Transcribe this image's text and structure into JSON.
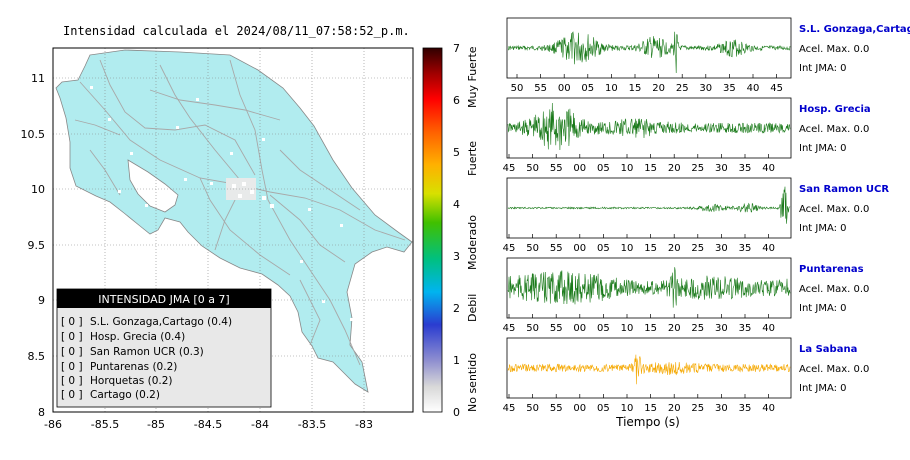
{
  "chart_data": [
    {
      "type": "heatmap",
      "title": "Intensidad calculada el 2024/08/11_07:58:52_p.m.",
      "xlabel": "",
      "ylabel": "",
      "xlim": [
        -86,
        -82.5
      ],
      "ylim": [
        8,
        11.3
      ],
      "x_ticks": [
        "-86",
        "-85.5",
        "-85",
        "-84.5",
        "-84",
        "-83.5",
        "-83"
      ],
      "y_ticks": [
        "8",
        "8.5",
        "9",
        "9.5",
        "10",
        "10.5",
        "11"
      ],
      "grid": true,
      "colorbar": {
        "min": 0,
        "max": 7,
        "ticks": [
          "0",
          "1",
          "2",
          "3",
          "4",
          "5",
          "6",
          "7"
        ],
        "labels": [
          "No sentido",
          "Debil",
          "Moderado",
          "Fuerte",
          "Muy Fuerte"
        ]
      },
      "legend": {
        "title": "INTENSIDAD JMA [0 a 7]",
        "placement": "bottom-left",
        "entries": [
          {
            "level": "[ 0 ]",
            "text": "S.L. Gonzaga,Cartago (0.4)"
          },
          {
            "level": "[ 0 ]",
            "text": "Hosp. Grecia (0.4)"
          },
          {
            "level": "[ 0 ]",
            "text": "San Ramon UCR (0.3)"
          },
          {
            "level": "[ 0 ]",
            "text": "Puntarenas (0.2)"
          },
          {
            "level": "[ 0 ]",
            "text": "Horquetas (0.2)"
          },
          {
            "level": "[ 0 ]",
            "text": "Cartago (0.2)"
          }
        ]
      }
    },
    {
      "type": "line",
      "title": "",
      "xlabel": "Tiempo (s)",
      "series": [
        {
          "name": "S.L. Gonzaga,Cartago",
          "acel": "Acel. Max. 0.0",
          "int": "Int JMA: 0",
          "color": "#1a7a1a",
          "x_ticks": [
            "50",
            "55",
            "00",
            "05",
            "10",
            "15",
            "20",
            "25",
            "30",
            "35",
            "40",
            "45"
          ]
        },
        {
          "name": "Hosp. Grecia",
          "acel": "Acel. Max. 0.0",
          "int": "Int JMA: 0",
          "color": "#1a7a1a",
          "x_ticks": [
            "45",
            "50",
            "55",
            "00",
            "05",
            "10",
            "15",
            "20",
            "25",
            "30",
            "35",
            "40"
          ]
        },
        {
          "name": "San Ramon UCR",
          "acel": "Acel. Max. 0.0",
          "int": "Int JMA: 0",
          "color": "#1a7a1a",
          "x_ticks": [
            "45",
            "50",
            "55",
            "00",
            "05",
            "10",
            "15",
            "20",
            "25",
            "30",
            "35",
            "40"
          ]
        },
        {
          "name": "Puntarenas",
          "acel": "Acel. Max. 0.0",
          "int": "Int JMA: 0",
          "color": "#1a7a1a",
          "x_ticks": [
            "45",
            "50",
            "55",
            "00",
            "05",
            "10",
            "15",
            "20",
            "25",
            "30",
            "35",
            "40"
          ]
        },
        {
          "name": "La Sabana",
          "acel": "Acel. Max. 0.0",
          "int": "Int JMA: 0",
          "color": "#f5a800",
          "x_ticks": [
            "45",
            "50",
            "55",
            "00",
            "05",
            "10",
            "15",
            "20",
            "25",
            "30",
            "35",
            "40"
          ]
        }
      ]
    }
  ],
  "colors": {
    "land": "#b1ecef",
    "label_blue": "#0000cc",
    "trace_green": "#1a7a1a",
    "trace_orange": "#f5a800"
  }
}
